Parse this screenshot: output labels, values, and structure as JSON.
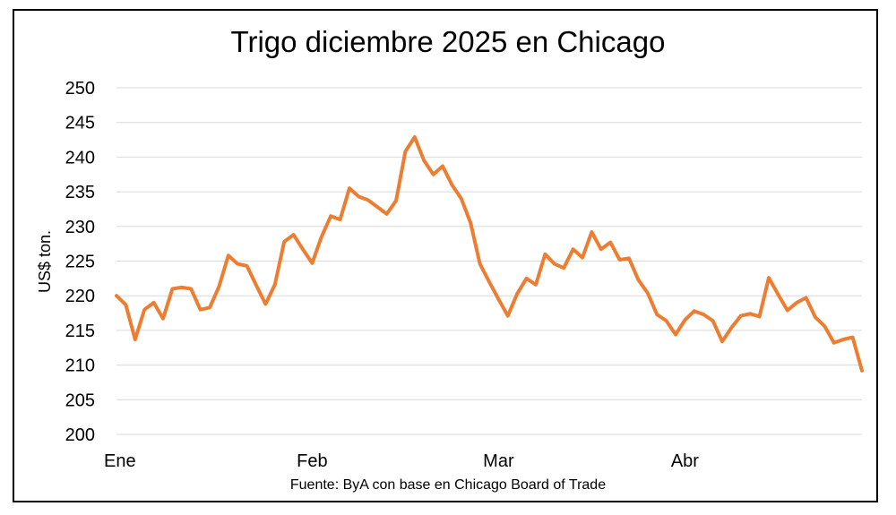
{
  "chart_data": {
    "type": "line",
    "title": "Trigo diciembre 2025 en Chicago",
    "ylabel": "US$ ton.",
    "xlabel": "",
    "source": "Fuente: ByA con base en Chicago Board of Trade",
    "ylim": [
      200,
      250
    ],
    "yticks": [
      200,
      205,
      210,
      215,
      220,
      225,
      230,
      235,
      240,
      245,
      250
    ],
    "xtick_labels": [
      {
        "label": "Ene",
        "index": 0
      },
      {
        "label": "Feb",
        "index": 21
      },
      {
        "label": "Mar",
        "index": 41
      },
      {
        "label": "Abr",
        "index": 61
      }
    ],
    "grid": true,
    "series": [
      {
        "color": "#ED7D31",
        "values": [
          220.0,
          218.7,
          213.7,
          218.0,
          219.0,
          216.7,
          221.0,
          221.2,
          221.0,
          218.0,
          218.3,
          221.3,
          225.8,
          224.6,
          224.3,
          221.5,
          218.8,
          221.6,
          227.8,
          228.8,
          226.7,
          224.7,
          228.5,
          231.5,
          231.0,
          235.5,
          234.3,
          233.8,
          232.8,
          231.8,
          233.7,
          240.8,
          242.9,
          239.5,
          237.5,
          238.7,
          236.0,
          234.0,
          230.5,
          224.6,
          222.0,
          219.5,
          217.1,
          220.3,
          222.5,
          221.6,
          226.0,
          224.6,
          224.0,
          226.7,
          225.5,
          229.2,
          226.7,
          227.7,
          225.2,
          225.4,
          222.3,
          220.4,
          217.3,
          216.4,
          214.4,
          216.5,
          217.8,
          217.3,
          216.4,
          213.4,
          215.4,
          217.1,
          217.4,
          217.0,
          222.6,
          220.2,
          217.9,
          219.0,
          219.7,
          216.9,
          215.6,
          213.2,
          213.7,
          214.0,
          209.2
        ]
      }
    ]
  }
}
